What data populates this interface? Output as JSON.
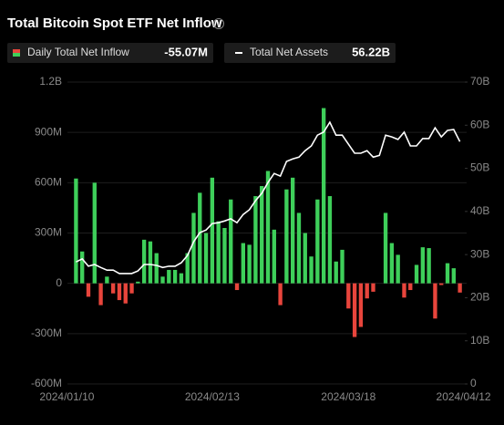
{
  "chart_data": {
    "type": "bar-line",
    "title": "Total Bitcoin Spot ETF Net Inflow",
    "categories": [
      "2024/01/10",
      null,
      null,
      null,
      null,
      null,
      null,
      null,
      null,
      null,
      null,
      null,
      null,
      null,
      null,
      null,
      null,
      null,
      null,
      null,
      null,
      null,
      "2024/02/13",
      null,
      null,
      null,
      null,
      null,
      null,
      null,
      null,
      null,
      null,
      null,
      null,
      null,
      null,
      null,
      null,
      null,
      null,
      null,
      null,
      null,
      "2024/03/18",
      null,
      null,
      null,
      null,
      null,
      null,
      null,
      null,
      null,
      null,
      null,
      null,
      null,
      null,
      null,
      null,
      null,
      "2024/04/12"
    ],
    "series": [
      {
        "name": "Daily Total Net Inflow",
        "latest": "-55.07M",
        "type": "bar",
        "color": "#3ecf5a",
        "negative_color": "#e8453c",
        "values": [
          625,
          190,
          -80,
          600,
          -130,
          40,
          -60,
          -100,
          -120,
          -60,
          10,
          260,
          250,
          180,
          40,
          80,
          80,
          60,
          180,
          420,
          540,
          300,
          630,
          370,
          330,
          500,
          -40,
          240,
          230,
          520,
          580,
          670,
          320,
          -130,
          560,
          630,
          420,
          300,
          160,
          500,
          1045,
          520,
          130,
          200,
          -150,
          -320,
          -260,
          -90,
          -50,
          0,
          420,
          240,
          170,
          -85,
          -40,
          110,
          215,
          210,
          -210,
          -10,
          120,
          90,
          -55.07
        ]
      },
      {
        "name": "Total Net Assets",
        "latest": "56.22B",
        "type": "line",
        "axis": "y2",
        "color": "#ffffff",
        "values": [
          28.3,
          29,
          27.3,
          27.7,
          27,
          26.4,
          26.4,
          25.6,
          25.6,
          25.6,
          26.2,
          27.7,
          27.7,
          27.5,
          27,
          27.3,
          27.3,
          28.1,
          29.8,
          33,
          35.1,
          35.7,
          37.2,
          37.4,
          37.8,
          38.3,
          37.4,
          39.3,
          40.4,
          42.5,
          44.2,
          46.7,
          48.8,
          48.2,
          51.6,
          52.2,
          52.6,
          54.1,
          55.2,
          57.7,
          58.4,
          60.7,
          57.7,
          57.7,
          55.6,
          53.5,
          53.5,
          54.1,
          52.6,
          53,
          57.7,
          57.3,
          56.7,
          58.4,
          55.2,
          55.2,
          56.9,
          56.9,
          59.4,
          57.3,
          58.8,
          59,
          56.22
        ]
      }
    ],
    "ylim": [
      -600,
      1200
    ],
    "yticks": [
      {
        "value": -600,
        "label": "-600M"
      },
      {
        "value": -300,
        "label": "-300M"
      },
      0,
      {
        "value": 300,
        "label": "300M"
      },
      {
        "value": 600,
        "label": "600M"
      },
      {
        "value": 900,
        "label": "900M"
      },
      {
        "value": 1200,
        "label": "1.2B"
      }
    ],
    "y2lim": [
      0,
      70
    ],
    "y2ticks": [
      0,
      {
        "value": 10,
        "label": "10B"
      },
      {
        "value": 20,
        "label": "20B"
      },
      {
        "value": 30,
        "label": "30B"
      },
      {
        "value": 40,
        "label": "40B"
      },
      {
        "value": 50,
        "label": "50B"
      },
      {
        "value": 60,
        "label": "60B"
      },
      {
        "value": 70,
        "label": "70B"
      }
    ],
    "grid": true
  }
}
